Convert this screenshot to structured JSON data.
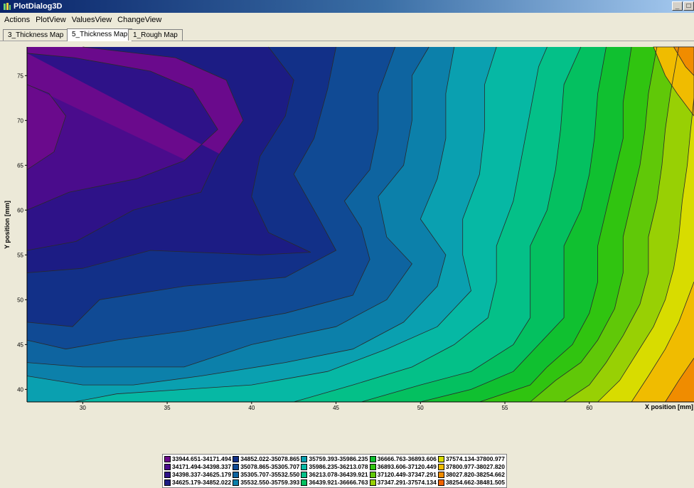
{
  "window": {
    "title": "PlotDialog3D",
    "buttons": {
      "minimize": "_",
      "maximize": "□"
    }
  },
  "menu": [
    "Actions",
    "PlotView",
    "ValuesView",
    "ChangeView"
  ],
  "tabs": [
    {
      "label": "3_Thickness Map",
      "active": false
    },
    {
      "label": "5_Thickness Map",
      "active": true
    },
    {
      "label": "1_Rough Map",
      "active": false
    }
  ],
  "chart_data": {
    "type": "contour",
    "xlabel": "X position [mm]",
    "ylabel": "Y position [mm]",
    "xlim": [
      26.7,
      66.2
    ],
    "ylim": [
      38.6,
      78.2
    ],
    "xticks": [
      30,
      35,
      40,
      45,
      50,
      55,
      60
    ],
    "yticks": [
      40,
      45,
      50,
      55,
      60,
      65,
      70,
      75
    ],
    "trend": "thickness increases from upper-left (~33945) toward the right edge (~38481)",
    "levels": [
      {
        "range": "33944.651-34171.494",
        "color": "#6a0a8c"
      },
      {
        "range": "34171.494-34398.337",
        "color": "#4a0c8c"
      },
      {
        "range": "34398.337-34625.179",
        "color": "#2e1288"
      },
      {
        "range": "34625.179-34852.022",
        "color": "#1c1c84"
      },
      {
        "range": "34852.022-35078.865",
        "color": "#123088"
      },
      {
        "range": "35078.865-35305.707",
        "color": "#104a94"
      },
      {
        "range": "35305.707-35532.550",
        "color": "#0e64a0"
      },
      {
        "range": "35532.550-35759.393",
        "color": "#0c80aa"
      },
      {
        "range": "35759.393-35986.235",
        "color": "#0aa0b0"
      },
      {
        "range": "35986.235-36213.078",
        "color": "#06b8a4"
      },
      {
        "range": "36213.078-36439.921",
        "color": "#04c088"
      },
      {
        "range": "36439.921-36666.763",
        "color": "#04c060"
      },
      {
        "range": "36666.763-36893.606",
        "color": "#10c030"
      },
      {
        "range": "36893.606-37120.449",
        "color": "#30c410"
      },
      {
        "range": "37120.449-37347.291",
        "color": "#60c808"
      },
      {
        "range": "37347.291-37574.134",
        "color": "#98d004"
      },
      {
        "range": "37574.134-37800.977",
        "color": "#d8dc00"
      },
      {
        "range": "37800.977-38027.820",
        "color": "#f0bc00"
      },
      {
        "range": "38027.820-38254.662",
        "color": "#f08c00"
      },
      {
        "range": "38254.662-38481.505",
        "color": "#f06400"
      }
    ],
    "contours": [
      {
        "level": 1,
        "pts": [
          [
            26.7,
            64.5
          ],
          [
            28.3,
            66.5
          ],
          [
            29,
            70.5
          ],
          [
            28,
            73
          ],
          [
            26.7,
            74
          ]
        ]
      },
      {
        "level": 2,
        "pts": [
          [
            26.7,
            60
          ],
          [
            29.2,
            62
          ],
          [
            33.2,
            63.5
          ],
          [
            36,
            65.5
          ],
          [
            38,
            69
          ],
          [
            36.5,
            73.5
          ],
          [
            34,
            75.5
          ],
          [
            29.5,
            77
          ],
          [
            26.7,
            77.5
          ]
        ]
      },
      {
        "level": 3,
        "pts": [
          [
            26.7,
            55.5
          ],
          [
            29.6,
            56.5
          ],
          [
            33,
            60
          ],
          [
            37,
            62
          ],
          [
            38,
            66
          ],
          [
            39.5,
            70
          ],
          [
            38.5,
            74.5
          ],
          [
            35.5,
            77
          ],
          [
            30,
            78.2
          ]
        ]
      },
      {
        "level": 4,
        "pts": [
          [
            26.7,
            53
          ],
          [
            30,
            53.5
          ],
          [
            34,
            55.5
          ],
          [
            40.5,
            55
          ],
          [
            43.5,
            55.3
          ],
          [
            41,
            57.5
          ],
          [
            40,
            61.5
          ],
          [
            40.5,
            66
          ],
          [
            42,
            70.5
          ],
          [
            42.5,
            74.5
          ],
          [
            41,
            78.2
          ]
        ]
      },
      {
        "level": 5,
        "pts": [
          [
            26.7,
            47.5
          ],
          [
            29.4,
            47
          ],
          [
            31,
            50
          ],
          [
            36,
            51.5
          ],
          [
            42,
            52.5
          ],
          [
            45,
            55.5
          ],
          [
            44,
            59
          ],
          [
            42.5,
            64
          ],
          [
            43.7,
            68
          ],
          [
            44.5,
            73.5
          ],
          [
            45,
            78.2
          ]
        ]
      },
      {
        "level": 6,
        "pts": [
          [
            26.7,
            45.5
          ],
          [
            29,
            44.5
          ],
          [
            32,
            45.5
          ],
          [
            36,
            46.5
          ],
          [
            42,
            48.5
          ],
          [
            46,
            50.5
          ],
          [
            47,
            54.5
          ],
          [
            46.5,
            58
          ],
          [
            45.5,
            61
          ],
          [
            47,
            64.5
          ],
          [
            47.5,
            69
          ],
          [
            47.5,
            73
          ],
          [
            48.5,
            78.2
          ]
        ]
      },
      {
        "level": 7,
        "pts": [
          [
            26.7,
            43
          ],
          [
            30,
            42.5
          ],
          [
            33,
            42.5
          ],
          [
            36,
            42.5
          ],
          [
            40,
            45
          ],
          [
            45,
            47
          ],
          [
            48,
            50
          ],
          [
            49.5,
            54
          ],
          [
            48,
            57
          ],
          [
            47.5,
            61.5
          ],
          [
            49,
            65
          ],
          [
            49.5,
            70
          ],
          [
            49.5,
            75
          ],
          [
            50.5,
            78.2
          ]
        ]
      },
      {
        "level": 8,
        "pts": [
          [
            26.7,
            41.5
          ],
          [
            30,
            40.5
          ],
          [
            33,
            40.5
          ],
          [
            37,
            41.5
          ],
          [
            42,
            43
          ],
          [
            46,
            44.5
          ],
          [
            49,
            47.5
          ],
          [
            51,
            51.5
          ],
          [
            51.5,
            55
          ],
          [
            50,
            59
          ],
          [
            51,
            63.5
          ],
          [
            51.5,
            68
          ],
          [
            51.5,
            73
          ],
          [
            52,
            78.2
          ]
        ]
      },
      {
        "level": 9,
        "pts": [
          [
            29.5,
            38.6
          ],
          [
            32,
            39.5
          ],
          [
            36,
            40
          ],
          [
            40,
            40.5
          ],
          [
            44.5,
            42
          ],
          [
            48,
            44.5
          ],
          [
            51,
            47
          ],
          [
            53,
            51
          ],
          [
            52.5,
            55
          ],
          [
            52.5,
            59
          ],
          [
            53.5,
            64
          ],
          [
            53.8,
            69
          ],
          [
            53.8,
            74
          ],
          [
            54.5,
            78.2
          ]
        ]
      },
      {
        "level": 10,
        "pts": [
          [
            42.5,
            38.6
          ],
          [
            46,
            40.5
          ],
          [
            49.5,
            42.5
          ],
          [
            52,
            45
          ],
          [
            54,
            48
          ],
          [
            54.5,
            52
          ],
          [
            54.5,
            56
          ],
          [
            55.5,
            61
          ],
          [
            56,
            66
          ],
          [
            56.5,
            71
          ],
          [
            57,
            76
          ],
          [
            57.5,
            78.2
          ]
        ]
      },
      {
        "level": 11,
        "pts": [
          [
            46.5,
            38.6
          ],
          [
            50,
            40.5
          ],
          [
            53,
            42
          ],
          [
            55.5,
            45
          ],
          [
            56.5,
            48
          ],
          [
            56.5,
            52
          ],
          [
            56.5,
            56
          ],
          [
            57.5,
            60
          ],
          [
            58,
            64.5
          ],
          [
            58.3,
            69
          ],
          [
            58.5,
            74
          ],
          [
            59.5,
            78.2
          ]
        ]
      },
      {
        "level": 12,
        "pts": [
          [
            50,
            38.6
          ],
          [
            53,
            40
          ],
          [
            55.5,
            42
          ],
          [
            57,
            45
          ],
          [
            58.5,
            48
          ],
          [
            58.5,
            52
          ],
          [
            58.5,
            56
          ],
          [
            59.5,
            60
          ],
          [
            60,
            64
          ],
          [
            60.3,
            68
          ],
          [
            60.5,
            73
          ],
          [
            61,
            78.2
          ]
        ]
      },
      {
        "level": 13,
        "pts": [
          [
            53.5,
            38.6
          ],
          [
            56.5,
            40.5
          ],
          [
            57.5,
            42.5
          ],
          [
            59,
            45
          ],
          [
            60,
            48.5
          ],
          [
            60.5,
            52
          ],
          [
            60.5,
            56
          ],
          [
            61,
            60
          ],
          [
            61.5,
            64
          ],
          [
            62,
            68
          ],
          [
            62,
            72
          ],
          [
            62.5,
            78.2
          ]
        ]
      },
      {
        "level": 14,
        "pts": [
          [
            56.5,
            38.6
          ],
          [
            58,
            41
          ],
          [
            59.5,
            43
          ],
          [
            60.5,
            45.5
          ],
          [
            61.5,
            49
          ],
          [
            62,
            53
          ],
          [
            62,
            57
          ],
          [
            62.5,
            61
          ],
          [
            63,
            65
          ],
          [
            63.3,
            69
          ],
          [
            63.5,
            73
          ],
          [
            64,
            78.2
          ]
        ]
      },
      {
        "level": 15,
        "pts": [
          [
            58.5,
            38.6
          ],
          [
            60,
            40.5
          ],
          [
            61,
            43
          ],
          [
            62,
            46
          ],
          [
            63,
            49.5
          ],
          [
            63.5,
            53
          ],
          [
            63.5,
            57
          ],
          [
            64,
            61
          ],
          [
            64.3,
            65
          ],
          [
            64.5,
            69
          ],
          [
            64.8,
            73
          ],
          [
            65.3,
            78.2
          ]
        ]
      },
      {
        "level": 16,
        "pts": [
          [
            60.5,
            38.6
          ],
          [
            61.8,
            41
          ],
          [
            62.8,
            44
          ],
          [
            63.8,
            47
          ],
          [
            64.5,
            50
          ],
          [
            65,
            53.5
          ],
          [
            65.3,
            57
          ],
          [
            65.5,
            61
          ],
          [
            65.8,
            65
          ],
          [
            66,
            69
          ],
          [
            66.2,
            72.5
          ]
        ]
      },
      {
        "level": 17,
        "pts": [
          [
            62.5,
            38.6
          ],
          [
            63.5,
            41.5
          ],
          [
            64.5,
            44.5
          ],
          [
            65.3,
            47.5
          ],
          [
            66,
            51
          ],
          [
            66.2,
            52
          ]
        ]
      },
      {
        "level": 18,
        "pts": [
          [
            64.5,
            38.6
          ],
          [
            65.3,
            41
          ],
          [
            66.2,
            43.5
          ]
        ]
      }
    ],
    "topright_patches": [
      {
        "level": 17,
        "pts": [
          [
            63.8,
            78.2
          ],
          [
            64.5,
            75
          ],
          [
            65.2,
            73
          ],
          [
            66.2,
            70.5
          ],
          [
            66.2,
            78.2
          ]
        ]
      },
      {
        "level": 18,
        "pts": [
          [
            65,
            78.2
          ],
          [
            65.7,
            76
          ],
          [
            66.2,
            75
          ],
          [
            66.2,
            78.2
          ]
        ]
      }
    ]
  }
}
